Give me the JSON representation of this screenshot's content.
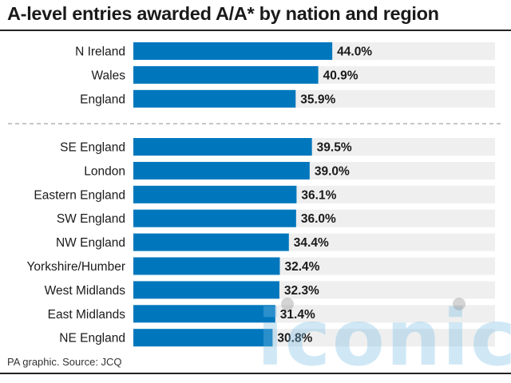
{
  "title": "A-level entries awarded A/A* by nation and region",
  "footer": "PA graphic. Source: JCQ",
  "watermark": "iconic",
  "colors": {
    "bar": "#0077bd",
    "track": "#efefef",
    "divider": "#b3b3b3"
  },
  "chart_data": {
    "type": "bar",
    "orientation": "horizontal",
    "title": "A-level entries awarded A/A* by nation and region",
    "unit": "%",
    "xlim": [
      0,
      80
    ],
    "groups": [
      {
        "categories": [
          "N Ireland",
          "Wales",
          "England"
        ],
        "values": [
          44.0,
          40.9,
          35.9
        ],
        "labels": [
          "44.0%",
          "40.9%",
          "35.9%"
        ]
      },
      {
        "categories": [
          "SE England",
          "London",
          "Eastern England",
          "SW England",
          "NW England",
          "Yorkshire/Humber",
          "West Midlands",
          "East Midlands",
          "NE England"
        ],
        "values": [
          39.5,
          39.0,
          36.1,
          36.0,
          34.4,
          32.4,
          32.3,
          31.4,
          30.8
        ],
        "labels": [
          "39.5%",
          "39.0%",
          "36.1%",
          "36.0%",
          "34.4%",
          "32.4%",
          "32.3%",
          "31.4%",
          "30.8%"
        ]
      }
    ]
  }
}
